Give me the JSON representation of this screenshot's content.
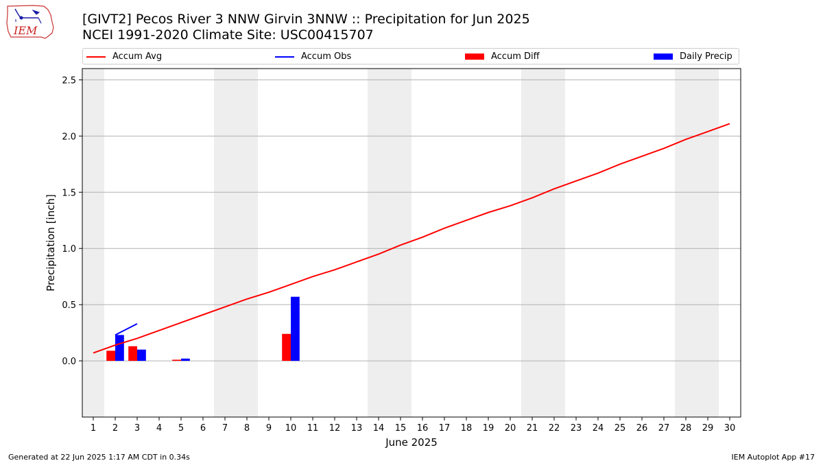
{
  "title": {
    "line1": "[GIVT2] Pecos River 3 NNW Girvin 3NNW :: Precipitation for Jun 2025",
    "line2": "NCEI 1991-2020 Climate Site: USC00415707"
  },
  "logo": {
    "text": "IEM"
  },
  "legend": {
    "accum_avg": "Accum Avg",
    "accum_obs": "Accum Obs",
    "accum_diff": "Accum Diff",
    "daily_precip": "Daily Precip"
  },
  "colors": {
    "accum_avg": "#ff0000",
    "accum_obs": "#0000ff",
    "accum_diff": "#ff0000",
    "daily_precip": "#0000ff",
    "weekend": "#eeeeee",
    "grid": "#b0b0b0"
  },
  "chart_data": {
    "type": "bar",
    "xlabel": "June 2025",
    "ylabel": "Precipitation [inch]",
    "x_range": [
      0.5,
      30.5
    ],
    "ylim": [
      -0.5,
      2.6
    ],
    "yticks": [
      0.0,
      0.5,
      1.0,
      1.5,
      2.0,
      2.5
    ],
    "ytick_labels": [
      "0.0",
      "0.5",
      "1.0",
      "1.5",
      "2.0",
      "2.5"
    ],
    "days": [
      1,
      2,
      3,
      4,
      5,
      6,
      7,
      8,
      9,
      10,
      11,
      12,
      13,
      14,
      15,
      16,
      17,
      18,
      19,
      20,
      21,
      22,
      23,
      24,
      25,
      26,
      27,
      28,
      29,
      30
    ],
    "weekend_ranges": [
      [
        0.5,
        1.5
      ],
      [
        6.5,
        8.5
      ],
      [
        13.5,
        15.5
      ],
      [
        20.5,
        22.5
      ],
      [
        27.5,
        29.5
      ]
    ],
    "grid": "y",
    "series": [
      {
        "name": "Accum Avg",
        "kind": "line",
        "x": [
          1,
          2,
          3,
          4,
          5,
          6,
          7,
          8,
          9,
          10,
          11,
          12,
          13,
          14,
          15,
          16,
          17,
          18,
          19,
          20,
          21,
          22,
          23,
          24,
          25,
          26,
          27,
          28,
          29,
          30
        ],
        "values": [
          0.07,
          0.14,
          0.2,
          0.27,
          0.34,
          0.41,
          0.48,
          0.55,
          0.61,
          0.68,
          0.75,
          0.81,
          0.88,
          0.95,
          1.03,
          1.1,
          1.18,
          1.25,
          1.32,
          1.38,
          1.45,
          1.53,
          1.6,
          1.67,
          1.75,
          1.82,
          1.89,
          1.97,
          2.04,
          2.11
        ]
      },
      {
        "name": "Accum Obs",
        "kind": "line",
        "x": [
          2,
          3
        ],
        "values": [
          0.23,
          0.33
        ]
      },
      {
        "name": "Accum Diff",
        "kind": "bar",
        "x": [
          2,
          3,
          5,
          10
        ],
        "values": [
          0.09,
          0.13,
          0.01,
          0.24
        ]
      },
      {
        "name": "Daily Precip",
        "kind": "bar",
        "x": [
          2,
          3,
          5,
          10
        ],
        "values": [
          0.23,
          0.1,
          0.02,
          0.57
        ]
      }
    ]
  },
  "footer": {
    "left": "Generated at 22 Jun 2025 1:17 AM CDT in 0.34s",
    "right": "IEM Autoplot App #17"
  }
}
